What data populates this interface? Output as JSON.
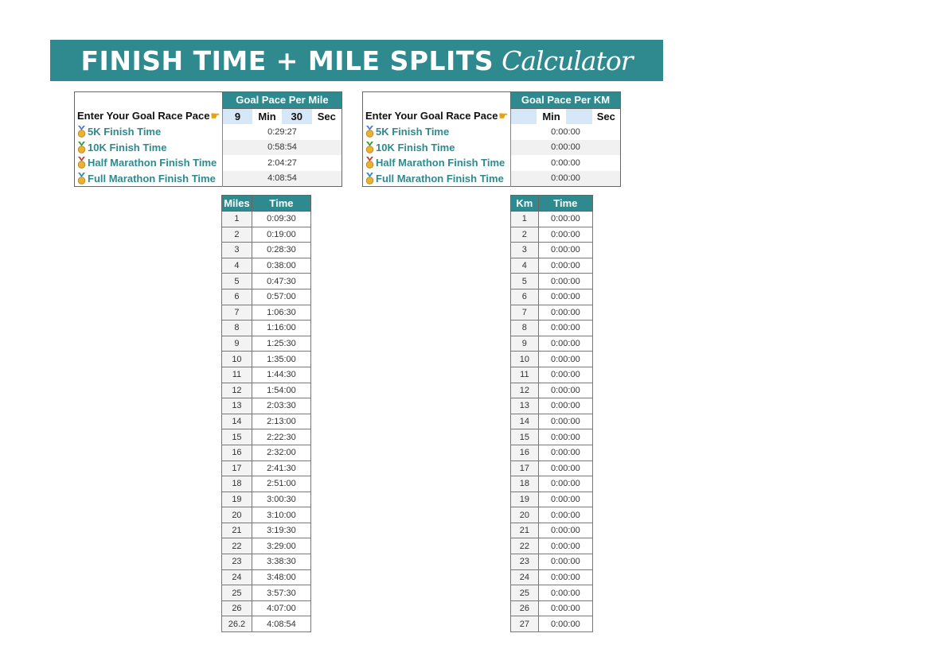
{
  "banner": {
    "title_main": "FINISH TIME + MILE SPLITS",
    "title_script": "Calculator"
  },
  "colors": {
    "teal": "#2e8a8f",
    "input_blue": "#d6e8f7"
  },
  "mile_panel": {
    "header": "Goal Pace Per Mile",
    "pace_label": "Enter Your Goal Race Pace",
    "min_value": "9",
    "min_label": "Min",
    "sec_value": "30",
    "sec_label": "Sec",
    "races": [
      {
        "label": "5K Finish Time",
        "time": "0:29:27",
        "medal_color": "#5a7fc0"
      },
      {
        "label": "10K Finish Time",
        "time": "0:58:54",
        "medal_color": "#3b9a4a"
      },
      {
        "label": "Half Marathon Finish Time",
        "time": "2:04:27",
        "medal_color": "#d0402f"
      },
      {
        "label": "Full Marathon Finish Time",
        "time": "4:08:54",
        "medal_color": "#2a8fd0"
      }
    ]
  },
  "km_panel": {
    "header": "Goal Pace Per KM",
    "pace_label": "Enter Your Goal Race Pace",
    "min_value": "",
    "min_label": "Min",
    "sec_value": "",
    "sec_label": "Sec",
    "races": [
      {
        "label": "5K Finish Time",
        "time": "0:00:00",
        "medal_color": "#5a7fc0"
      },
      {
        "label": "10K Finish Time",
        "time": "0:00:00",
        "medal_color": "#3b9a4a"
      },
      {
        "label": "Half Marathon Finish Time",
        "time": "0:00:00",
        "medal_color": "#d0402f"
      },
      {
        "label": "Full Marathon Finish Time",
        "time": "0:00:00",
        "medal_color": "#2a8fd0"
      }
    ]
  },
  "mile_splits": {
    "col1": "Miles",
    "col2": "Time",
    "rows": [
      [
        "1",
        "0:09:30"
      ],
      [
        "2",
        "0:19:00"
      ],
      [
        "3",
        "0:28:30"
      ],
      [
        "4",
        "0:38:00"
      ],
      [
        "5",
        "0:47:30"
      ],
      [
        "6",
        "0:57:00"
      ],
      [
        "7",
        "1:06:30"
      ],
      [
        "8",
        "1:16:00"
      ],
      [
        "9",
        "1:25:30"
      ],
      [
        "10",
        "1:35:00"
      ],
      [
        "11",
        "1:44:30"
      ],
      [
        "12",
        "1:54:00"
      ],
      [
        "13",
        "2:03:30"
      ],
      [
        "14",
        "2:13:00"
      ],
      [
        "15",
        "2:22:30"
      ],
      [
        "16",
        "2:32:00"
      ],
      [
        "17",
        "2:41:30"
      ],
      [
        "18",
        "2:51:00"
      ],
      [
        "19",
        "3:00:30"
      ],
      [
        "20",
        "3:10:00"
      ],
      [
        "21",
        "3:19:30"
      ],
      [
        "22",
        "3:29:00"
      ],
      [
        "23",
        "3:38:30"
      ],
      [
        "24",
        "3:48:00"
      ],
      [
        "25",
        "3:57:30"
      ],
      [
        "26",
        "4:07:00"
      ],
      [
        "26.2",
        "4:08:54"
      ]
    ]
  },
  "km_splits": {
    "col1": "Km",
    "col2": "Time",
    "rows": [
      [
        "1",
        "0:00:00"
      ],
      [
        "2",
        "0:00:00"
      ],
      [
        "3",
        "0:00:00"
      ],
      [
        "4",
        "0:00:00"
      ],
      [
        "5",
        "0:00:00"
      ],
      [
        "6",
        "0:00:00"
      ],
      [
        "7",
        "0:00:00"
      ],
      [
        "8",
        "0:00:00"
      ],
      [
        "9",
        "0:00:00"
      ],
      [
        "10",
        "0:00:00"
      ],
      [
        "11",
        "0:00:00"
      ],
      [
        "12",
        "0:00:00"
      ],
      [
        "13",
        "0:00:00"
      ],
      [
        "14",
        "0:00:00"
      ],
      [
        "15",
        "0:00:00"
      ],
      [
        "16",
        "0:00:00"
      ],
      [
        "17",
        "0:00:00"
      ],
      [
        "18",
        "0:00:00"
      ],
      [
        "19",
        "0:00:00"
      ],
      [
        "20",
        "0:00:00"
      ],
      [
        "21",
        "0:00:00"
      ],
      [
        "22",
        "0:00:00"
      ],
      [
        "23",
        "0:00:00"
      ],
      [
        "24",
        "0:00:00"
      ],
      [
        "25",
        "0:00:00"
      ],
      [
        "26",
        "0:00:00"
      ],
      [
        "27",
        "0:00:00"
      ]
    ]
  }
}
